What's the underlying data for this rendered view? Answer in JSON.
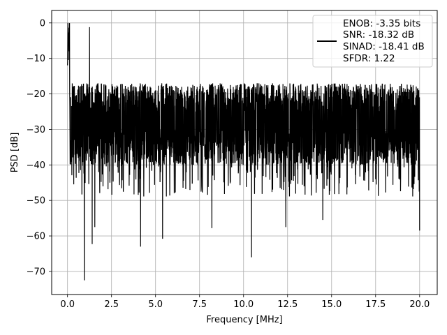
{
  "chart_data": {
    "type": "line",
    "title": "",
    "xlabel": "Frequency [MHz]",
    "ylabel": "PSD [dB]",
    "xlim": [
      -0.9,
      21.0
    ],
    "ylim": [
      -76.5,
      3.5
    ],
    "x_ticks": [
      0.0,
      2.5,
      5.0,
      7.5,
      10.0,
      12.5,
      15.0,
      17.5,
      20.0
    ],
    "x_tick_labels": [
      "0.0",
      "2.5",
      "5.0",
      "7.5",
      "10.0",
      "12.5",
      "15.0",
      "17.5",
      "20.0"
    ],
    "y_ticks": [
      0,
      -10,
      -20,
      -30,
      -40,
      -50,
      -60,
      -70
    ],
    "y_tick_labels": [
      "0",
      "−10",
      "−20",
      "−30",
      "−40",
      "−50",
      "−60",
      "−70"
    ],
    "grid": true,
    "legend_position": "top-right",
    "series": [
      {
        "name": "ENOB: -3.35 bits\nSNR: -18.32 dB\nSINAD: -18.41 dB\nSFDR: 1.22",
        "color": "#000000",
        "x_range": [
          0.0,
          20.0
        ],
        "noise_band_db": [
          -40,
          -17
        ],
        "peaks": [
          {
            "x": 0.02,
            "y": 0.0
          },
          {
            "x": 0.05,
            "y": -3.0
          },
          {
            "x": 0.1,
            "y": -8.0
          },
          {
            "x": 1.25,
            "y": -1.2
          },
          {
            "x": 20.0,
            "y": -14.5
          }
        ],
        "dips": [
          {
            "x": 0.95,
            "y": -72.5
          },
          {
            "x": 1.4,
            "y": -62.3
          },
          {
            "x": 1.55,
            "y": -57.5
          },
          {
            "x": 4.15,
            "y": -63.0
          },
          {
            "x": 5.4,
            "y": -60.8
          },
          {
            "x": 8.2,
            "y": -57.8
          },
          {
            "x": 10.45,
            "y": -66.0
          },
          {
            "x": 12.4,
            "y": -57.5
          },
          {
            "x": 14.5,
            "y": -55.5
          },
          {
            "x": 20.0,
            "y": -58.5
          }
        ]
      }
    ],
    "legend_lines": [
      "ENOB: -3.35 bits",
      "SNR: -18.32 dB",
      "SINAD: -18.41 dB",
      "SFDR: 1.22"
    ]
  }
}
